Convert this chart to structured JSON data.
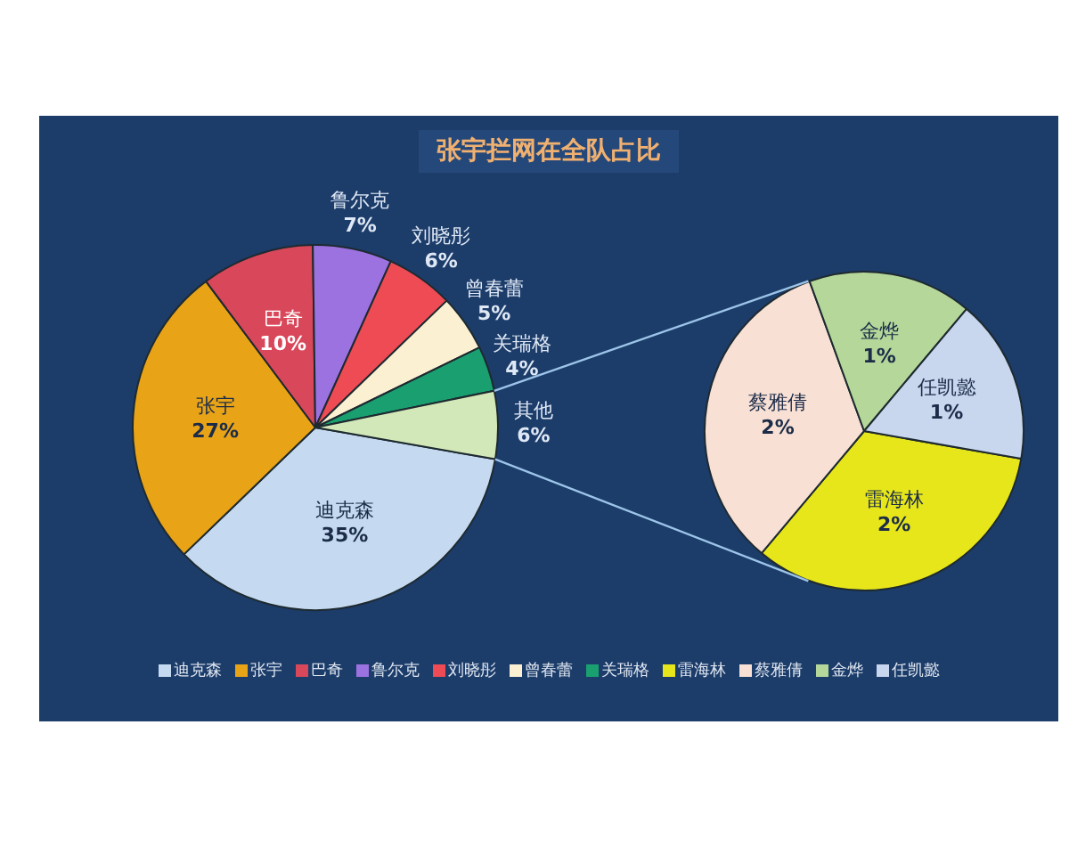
{
  "chart_data": [
    {
      "type": "pie",
      "title": "张宇拦网在全队占比",
      "categories": [
        "迪克森",
        "张宇",
        "巴奇",
        "鲁尔克",
        "刘晓彤",
        "曾春蕾",
        "关瑞格",
        "其他"
      ],
      "values": [
        35,
        27,
        10,
        7,
        6,
        5,
        4,
        6
      ],
      "value_labels": [
        "35%",
        "27%",
        "10%",
        "7%",
        "6%",
        "5%",
        "4%",
        "6%"
      ],
      "colors": [
        "#c5daf0",
        "#e8a317",
        "#d9475a",
        "#9b72e0",
        "#ee4b55",
        "#fcf0d2",
        "#1aa070",
        "#d3e8b8"
      ],
      "legend": "bottom"
    },
    {
      "type": "pie",
      "categories": [
        "雷海林",
        "蔡雅倩",
        "金烨",
        "任凯懿"
      ],
      "values": [
        2,
        2,
        1,
        1
      ],
      "value_labels": [
        "2%",
        "2%",
        "1%",
        "1%"
      ],
      "colors": [
        "#e6e61a",
        "#f8e0d5",
        "#b5d89a",
        "#c8d6ee"
      ],
      "legend": "bottom"
    }
  ]
}
